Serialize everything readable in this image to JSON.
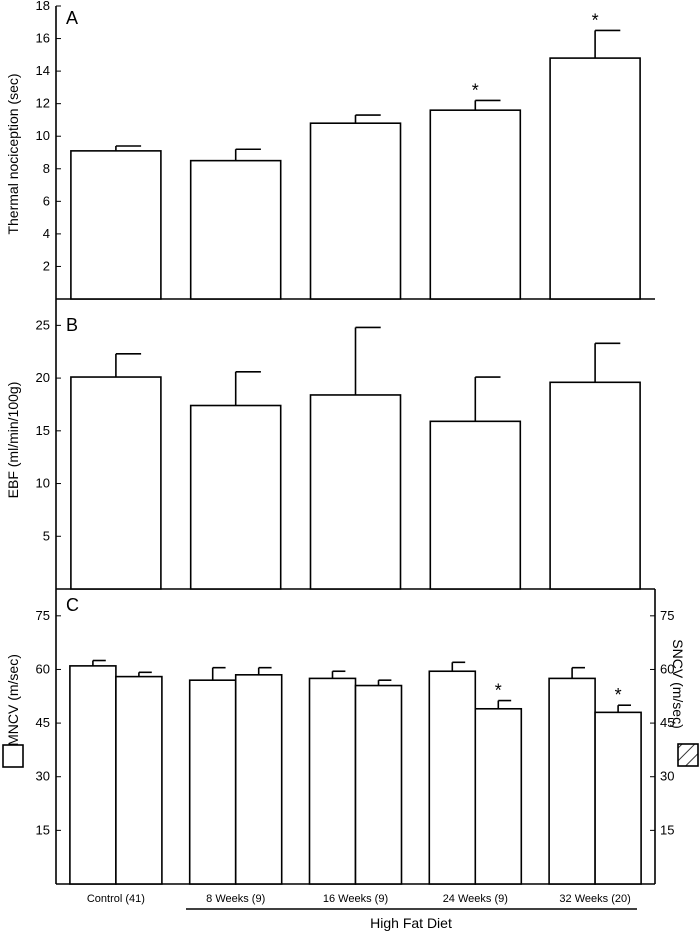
{
  "chart_data": [
    {
      "panel": "A",
      "type": "bar",
      "ylabel": "Thermal nociception (sec)",
      "ylim": [
        0,
        18
      ],
      "yticks": [
        2,
        4,
        6,
        8,
        10,
        12,
        14,
        16,
        18
      ],
      "values": [
        9.1,
        8.5,
        10.8,
        11.6,
        14.8
      ],
      "errors": [
        0.3,
        0.7,
        0.5,
        0.6,
        1.7
      ],
      "significant": [
        false,
        false,
        false,
        true,
        true
      ]
    },
    {
      "panel": "B",
      "type": "bar",
      "ylabel": "EBF (ml/min/100g)",
      "ylim": [
        0,
        27.5
      ],
      "yticks": [
        5,
        10,
        15,
        20,
        25
      ],
      "values": [
        20.1,
        17.4,
        18.4,
        15.9,
        19.6
      ],
      "errors": [
        2.2,
        3.2,
        6.4,
        4.2,
        3.7
      ],
      "significant": [
        false,
        false,
        false,
        false,
        false
      ]
    },
    {
      "panel": "C",
      "type": "bar",
      "ylabel": "MNCV (m/sec)",
      "y2label": "SNCV (m/sec)",
      "ylim": [
        0,
        82.5
      ],
      "yticks": [
        15,
        30,
        45,
        60,
        75
      ],
      "y2ticks": [
        15,
        30,
        45,
        60,
        75
      ],
      "series": [
        {
          "name": "MNCV",
          "values": [
            61.0,
            57.0,
            57.5,
            59.5,
            57.5
          ],
          "errors": [
            1.5,
            3.5,
            2.0,
            2.5,
            3.0
          ],
          "significant": [
            false,
            false,
            false,
            false,
            false
          ]
        },
        {
          "name": "SNCV",
          "values": [
            58.0,
            58.5,
            55.5,
            49.0,
            48.0
          ],
          "errors": [
            1.2,
            2.0,
            1.5,
            2.3,
            2.0
          ],
          "significant": [
            false,
            false,
            false,
            true,
            true
          ]
        }
      ]
    }
  ],
  "categories": [
    "Control (41)",
    "8 Weeks (9)",
    "16 Weeks (9)",
    "24 Weeks (9)",
    "32 Weeks (20)"
  ],
  "group_label": "High Fat Diet",
  "significance_marker": "*"
}
